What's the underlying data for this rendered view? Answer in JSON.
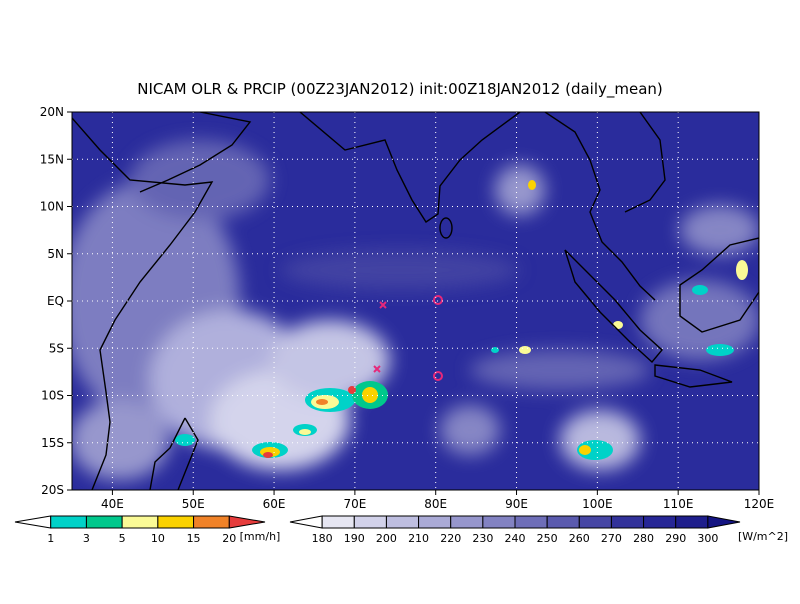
{
  "header": {
    "title": "NICAM OLR & PRCIP (00Z23JAN2012) init:00Z18JAN2012 (daily_mean)"
  },
  "map": {
    "lonlim": [
      35,
      120
    ],
    "latlim": [
      -20,
      20
    ],
    "lon_ticks": [
      {
        "value": 40,
        "label": "40E"
      },
      {
        "value": 50,
        "label": "50E"
      },
      {
        "value": 60,
        "label": "60E"
      },
      {
        "value": 70,
        "label": "70E"
      },
      {
        "value": 80,
        "label": "80E"
      },
      {
        "value": 90,
        "label": "90E"
      },
      {
        "value": 100,
        "label": "100E"
      },
      {
        "value": 110,
        "label": "110E"
      },
      {
        "value": 120,
        "label": "120E"
      }
    ],
    "lat_ticks": [
      {
        "value": 20,
        "label": "20N"
      },
      {
        "value": 15,
        "label": "15N"
      },
      {
        "value": 10,
        "label": "10N"
      },
      {
        "value": 5,
        "label": "5N"
      },
      {
        "value": 0,
        "label": "EQ"
      },
      {
        "value": -5,
        "label": "5S"
      },
      {
        "value": -10,
        "label": "10S"
      },
      {
        "value": -15,
        "label": "15S"
      },
      {
        "value": -20,
        "label": "20S"
      }
    ],
    "grid": true
  },
  "precip_colorbar": {
    "labels": [
      1,
      3,
      5,
      10,
      15,
      20
    ],
    "unit": "[mm/h]",
    "colors": [
      "#ffffff",
      "#00d2c8",
      "#00c88c",
      "#fafa96",
      "#fad200",
      "#f08228",
      "#e63c3c"
    ]
  },
  "olr_colorbar": {
    "labels": [
      180,
      190,
      200,
      210,
      220,
      230,
      240,
      250,
      260,
      270,
      280,
      290,
      300
    ],
    "unit": "[W/m^2]",
    "colors": [
      "#ffffff",
      "#e6e6f2",
      "#d2d2ea",
      "#bebee0",
      "#aaaad6",
      "#9696cc",
      "#8282c2",
      "#6e6eb8",
      "#5a5aae",
      "#4646a4",
      "#32329a",
      "#262696",
      "#1e1e8c",
      "#141482"
    ]
  }
}
